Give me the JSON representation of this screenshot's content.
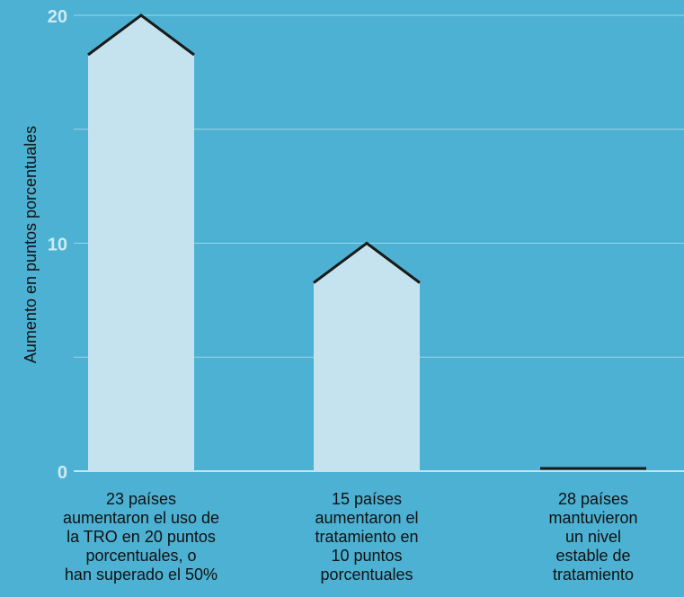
{
  "colors": {
    "background": "#4cb1d2",
    "bar_fill": "#c5e3ef",
    "bar_cap": "#1a1a1a",
    "gridline": "#9fd6e8",
    "tick_text": "#cdeaf4",
    "label_text": "#111111"
  },
  "chart_data": {
    "type": "bar",
    "title": "",
    "xlabel": "",
    "ylabel": "Aumento en puntos porcentuales",
    "ylim": [
      0,
      20
    ],
    "yticks": [
      0,
      10,
      20
    ],
    "grid_values": [
      5,
      10,
      15,
      20
    ],
    "grid": true,
    "legend": "none",
    "categories": [
      [
        "23 países",
        "aumentaron el uso de",
        "la TRO en 20 puntos",
        "porcentuales, o",
        "han superado el 50%"
      ],
      [
        "15 países",
        "aumentaron el",
        "tratamiento en",
        "10 puntos",
        "porcentuales"
      ],
      [
        "28 países",
        "mantuvieron",
        "un nivel",
        "estable de",
        "tratamiento"
      ]
    ],
    "values": [
      20,
      10,
      0
    ]
  }
}
